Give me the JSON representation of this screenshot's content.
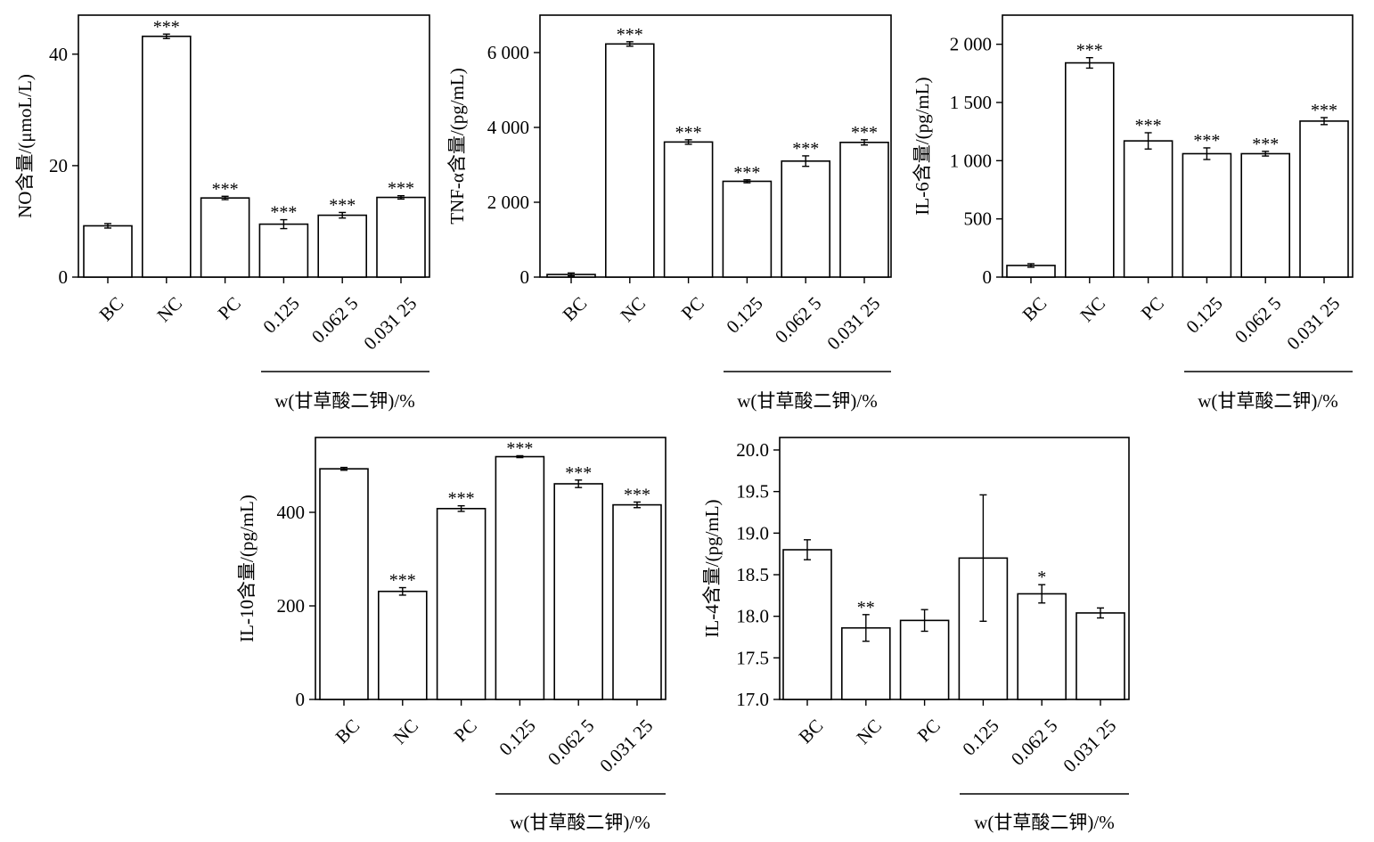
{
  "chart_data": [
    {
      "type": "bar",
      "ylabel": "NO含量/(μmoL/L)",
      "categories": [
        "BC",
        "NC",
        "PC",
        "0.125",
        "0.062 5",
        "0.031 25"
      ],
      "values": [
        9.2,
        43.2,
        14.2,
        9.5,
        11.1,
        14.3
      ],
      "errors": [
        0.4,
        0.4,
        0.3,
        0.8,
        0.5,
        0.3
      ],
      "significance": [
        "",
        "***",
        "***",
        "***",
        "***",
        "***"
      ],
      "ylim": [
        0,
        47
      ],
      "yticks": [
        0,
        20,
        40
      ],
      "ytick_labels": [
        "0",
        "20",
        "40"
      ],
      "group_label": "w(甘草酸二钾)/%"
    },
    {
      "type": "bar",
      "ylabel": "TNF-α含量/(pg/mL)",
      "categories": [
        "BC",
        "NC",
        "PC",
        "0.125",
        "0.062 5",
        "0.031 25"
      ],
      "values": [
        70,
        6230,
        3610,
        2560,
        3100,
        3600
      ],
      "errors": [
        40,
        60,
        60,
        40,
        140,
        70
      ],
      "significance": [
        "",
        "***",
        "***",
        "***",
        "***",
        "***"
      ],
      "ylim": [
        0,
        7000
      ],
      "yticks": [
        0,
        2000,
        4000,
        6000
      ],
      "ytick_labels": [
        "0",
        "2 000",
        "4 000",
        "6 000"
      ],
      "group_label": "w(甘草酸二钾)/%"
    },
    {
      "type": "bar",
      "ylabel": "IL-6含量/(pg/mL)",
      "categories": [
        "BC",
        "NC",
        "PC",
        "0.125",
        "0.062 5",
        "0.031 25"
      ],
      "values": [
        100,
        1840,
        1170,
        1060,
        1060,
        1340
      ],
      "errors": [
        15,
        45,
        70,
        50,
        20,
        30
      ],
      "significance": [
        "",
        "***",
        "***",
        "***",
        "***",
        "***"
      ],
      "ylim": [
        0,
        2250
      ],
      "yticks": [
        0,
        500,
        1000,
        1500,
        2000
      ],
      "ytick_labels": [
        "0",
        "500",
        "1 000",
        "1 500",
        "2 000"
      ],
      "group_label": "w(甘草酸二钾)/%"
    },
    {
      "type": "bar",
      "ylabel": "IL-10含量/(pg/mL)",
      "categories": [
        "BC",
        "NC",
        "PC",
        "0.125",
        "0.062 5",
        "0.031 25"
      ],
      "values": [
        493,
        231,
        408,
        519,
        461,
        416
      ],
      "errors": [
        3,
        8,
        6,
        2,
        8,
        6
      ],
      "significance": [
        "",
        "***",
        "***",
        "***",
        "***",
        "***"
      ],
      "ylim": [
        0,
        560
      ],
      "yticks": [
        0,
        200,
        400
      ],
      "ytick_labels": [
        "0",
        "200",
        "400"
      ],
      "group_label": "w(甘草酸二钾)/%"
    },
    {
      "type": "bar",
      "ylabel": "IL-4含量/(pg/mL)",
      "categories": [
        "BC",
        "NC",
        "PC",
        "0.125",
        "0.062 5",
        "0.031 25"
      ],
      "values": [
        18.8,
        17.86,
        17.95,
        18.7,
        18.27,
        18.04
      ],
      "errors": [
        0.12,
        0.16,
        0.13,
        0.76,
        0.11,
        0.06
      ],
      "significance": [
        "",
        "**",
        "",
        "",
        "*",
        ""
      ],
      "ylim": [
        17.0,
        20.15
      ],
      "yticks": [
        17.0,
        17.5,
        18.0,
        18.5,
        19.0,
        19.5,
        20.0
      ],
      "ytick_labels": [
        "17.0",
        "17.5",
        "18.0",
        "18.5",
        "19.0",
        "19.5",
        "20.0"
      ],
      "group_label": "w(甘草酸二钾)/%"
    }
  ]
}
